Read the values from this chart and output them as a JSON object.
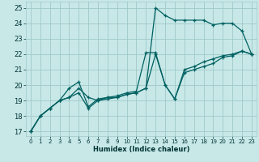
{
  "xlabel": "Humidex (Indice chaleur)",
  "bg_color": "#c8e8e8",
  "grid_color": "#a0c8c8",
  "line_color": "#006060",
  "xlim": [
    -0.5,
    23.5
  ],
  "ylim": [
    16.7,
    25.4
  ],
  "xticks": [
    0,
    1,
    2,
    3,
    4,
    5,
    6,
    7,
    8,
    9,
    10,
    11,
    12,
    13,
    14,
    15,
    16,
    17,
    18,
    19,
    20,
    21,
    22,
    23
  ],
  "yticks": [
    17,
    18,
    19,
    20,
    21,
    22,
    23,
    24,
    25
  ],
  "line1": {
    "x": [
      0,
      1,
      2,
      3,
      4,
      5,
      6,
      7,
      8,
      9,
      10,
      11,
      12,
      13,
      14,
      15,
      16,
      17,
      18,
      19,
      20,
      21,
      22,
      23
    ],
    "y": [
      17.0,
      18.0,
      18.5,
      19.0,
      19.2,
      19.8,
      19.2,
      19.0,
      19.1,
      19.2,
      19.4,
      19.5,
      19.8,
      25.0,
      24.5,
      24.2,
      24.2,
      24.2,
      24.2,
      23.9,
      24.0,
      24.0,
      23.5,
      22.0
    ]
  },
  "line2": {
    "x": [
      0,
      1,
      2,
      3,
      4,
      5,
      6,
      7,
      8,
      9,
      10,
      11,
      12,
      13,
      14,
      15,
      16,
      17,
      18,
      19,
      20,
      21,
      22,
      23
    ],
    "y": [
      17.0,
      18.0,
      18.5,
      19.0,
      19.8,
      20.2,
      18.6,
      19.1,
      19.2,
      19.3,
      19.5,
      19.6,
      22.1,
      22.1,
      20.0,
      19.1,
      21.0,
      21.2,
      21.5,
      21.7,
      21.9,
      22.0,
      22.2,
      22.0
    ]
  },
  "line3": {
    "x": [
      0,
      1,
      2,
      3,
      4,
      5,
      6,
      7,
      8,
      9,
      10,
      11,
      12,
      13,
      14,
      15,
      16,
      17,
      18,
      19,
      20,
      21,
      22,
      23
    ],
    "y": [
      17.0,
      18.0,
      18.5,
      19.0,
      19.2,
      19.5,
      18.5,
      19.0,
      19.2,
      19.2,
      19.4,
      19.5,
      19.8,
      22.0,
      20.0,
      19.1,
      20.8,
      21.0,
      21.2,
      21.4,
      21.8,
      21.9,
      22.2,
      22.0
    ]
  }
}
